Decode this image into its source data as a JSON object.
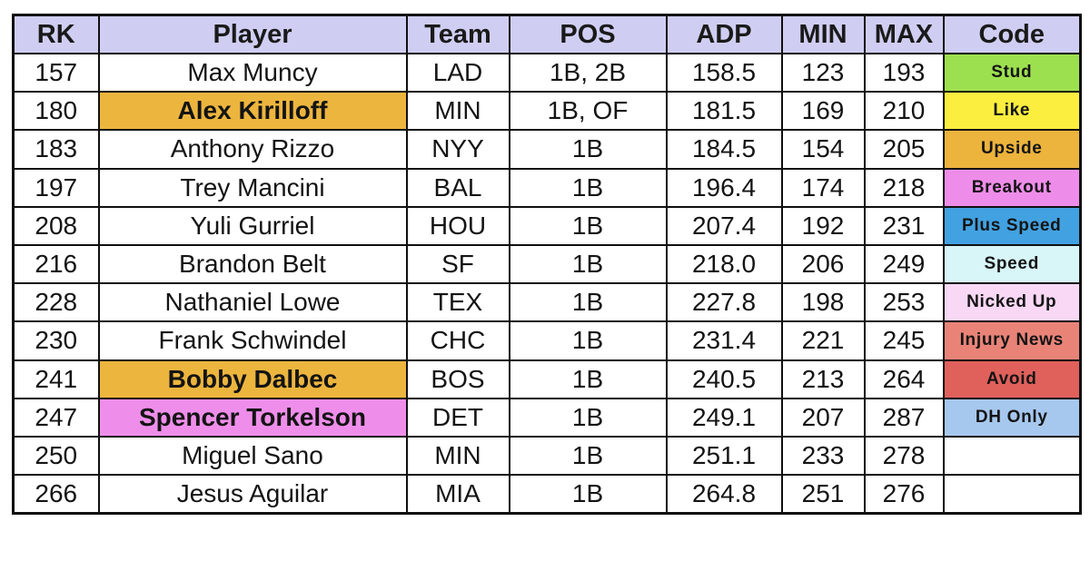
{
  "chart_data": {
    "type": "table",
    "title": "",
    "columns": [
      "RK",
      "Player",
      "Team",
      "POS",
      "ADP",
      "MIN",
      "MAX",
      "Code"
    ],
    "rows": [
      [
        "157",
        "Max Muncy",
        "LAD",
        "1B, 2B",
        "158.5",
        "123",
        "193",
        "Stud"
      ],
      [
        "180",
        "Alex Kirilloff",
        "MIN",
        "1B, OF",
        "181.5",
        "169",
        "210",
        "Like"
      ],
      [
        "183",
        "Anthony Rizzo",
        "NYY",
        "1B",
        "184.5",
        "154",
        "205",
        "Upside"
      ],
      [
        "197",
        "Trey Mancini",
        "BAL",
        "1B",
        "196.4",
        "174",
        "218",
        "Breakout"
      ],
      [
        "208",
        "Yuli Gurriel",
        "HOU",
        "1B",
        "207.4",
        "192",
        "231",
        "Plus Speed"
      ],
      [
        "216",
        "Brandon Belt",
        "SF",
        "1B",
        "218.0",
        "206",
        "249",
        "Speed"
      ],
      [
        "228",
        "Nathaniel Lowe",
        "TEX",
        "1B",
        "227.8",
        "198",
        "253",
        "Nicked Up"
      ],
      [
        "230",
        "Frank Schwindel",
        "CHC",
        "1B",
        "231.4",
        "221",
        "245",
        "Injury News"
      ],
      [
        "241",
        "Bobby Dalbec",
        "BOS",
        "1B",
        "240.5",
        "213",
        "264",
        "Avoid"
      ],
      [
        "247",
        "Spencer Torkelson",
        "DET",
        "1B",
        "249.1",
        "207",
        "287",
        "DH Only"
      ],
      [
        "250",
        "Miguel Sano",
        "MIN",
        "1B",
        "251.1",
        "233",
        "278",
        ""
      ],
      [
        "266",
        "Jesus Aguilar",
        "MIA",
        "1B",
        "264.8",
        "251",
        "276",
        ""
      ]
    ]
  },
  "styling": {
    "header_bg": "#cfcef2",
    "code_colors": {
      "Stud": "#9de04f",
      "Like": "#fbee3f",
      "Upside": "#ecb33d",
      "Breakout": "#ee8de9",
      "Plus Speed": "#42a1e1",
      "Speed": "#d8f5f7",
      "Nicked Up": "#f8d8f4",
      "Injury News": "#e98378",
      "Avoid": "#e0605c",
      "DH Only": "#a6c8ee"
    },
    "player_highlights": [
      {
        "row": 1,
        "color": "#ecb53e"
      },
      {
        "row": 8,
        "color": "#ecb53e"
      },
      {
        "row": 9,
        "color": "#ef8eea"
      }
    ]
  }
}
